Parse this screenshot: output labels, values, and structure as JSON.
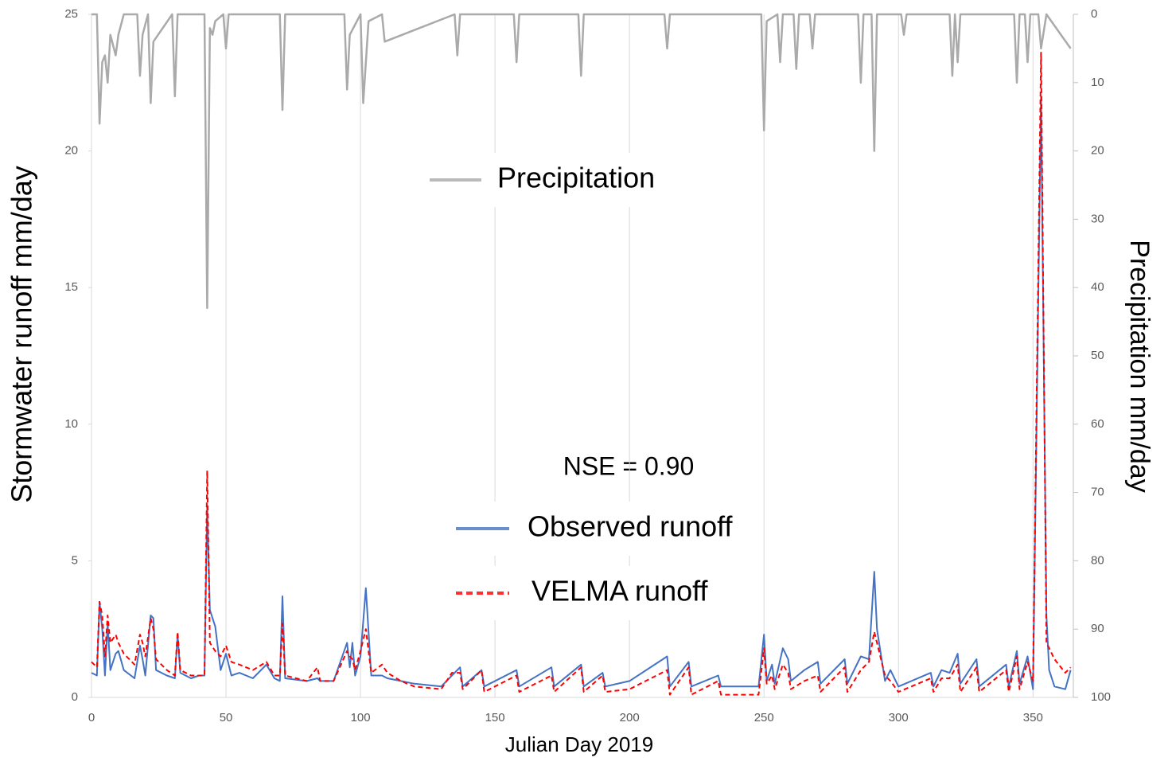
{
  "chart_data": {
    "type": "line",
    "xlabel": "Julian Day 2019",
    "ylabel": "Stormwater runoff mm/day",
    "y2label": "Precipitation mm/day",
    "annotation": "NSE = 0.90",
    "xlim": [
      0,
      365
    ],
    "xticks": [
      0,
      50,
      100,
      150,
      200,
      250,
      300,
      350
    ],
    "ylim": [
      0,
      25
    ],
    "yticks": [
      0,
      5,
      10,
      15,
      20,
      25
    ],
    "y2lim": [
      100,
      0
    ],
    "y2ticks": [
      0,
      10,
      20,
      30,
      40,
      50,
      60,
      70,
      80,
      90,
      100
    ],
    "grid": "x",
    "x": [
      0,
      2,
      3,
      4,
      5,
      6,
      7,
      9,
      10,
      12,
      16,
      18,
      19,
      20,
      22,
      23,
      24,
      28,
      31,
      32,
      33,
      37,
      40,
      42,
      43,
      44,
      46,
      48,
      50,
      52,
      55,
      60,
      65,
      68,
      70,
      71,
      72,
      80,
      84,
      85,
      90,
      95,
      96,
      97,
      98,
      100,
      102,
      104,
      108,
      110,
      115,
      120,
      130,
      134,
      137,
      138,
      145,
      146,
      158,
      159,
      171,
      172,
      182,
      183,
      190,
      191,
      200,
      214,
      215,
      222,
      223,
      233,
      234,
      248,
      250,
      251,
      253,
      254,
      257,
      259,
      260,
      265,
      270,
      271,
      280,
      281,
      286,
      289,
      291,
      292,
      295,
      297,
      300,
      312,
      313,
      316,
      319,
      322,
      323,
      329,
      330,
      340,
      341,
      344,
      345,
      348,
      350,
      353,
      355,
      356,
      358,
      362,
      364
    ],
    "series": [
      {
        "name": "Precipitation",
        "color": "#aaaaaa",
        "axis": "y2",
        "x": [
          0,
          2,
          3,
          4,
          5,
          6,
          7,
          9,
          10,
          12,
          17,
          18,
          19,
          21,
          22,
          23,
          30,
          31,
          32,
          40,
          42,
          43,
          44,
          45,
          46,
          49,
          50,
          51,
          70,
          71,
          72,
          84,
          85,
          94,
          95,
          96,
          100,
          101,
          103,
          108,
          109,
          135,
          136,
          137,
          157,
          158,
          159,
          181,
          182,
          183,
          213,
          214,
          215,
          249,
          250,
          251,
          255,
          256,
          257,
          261,
          262,
          263,
          267,
          268,
          269,
          285,
          286,
          287,
          290,
          291,
          292,
          301,
          302,
          303,
          319,
          320,
          321,
          322,
          323,
          343,
          344,
          345,
          347,
          348,
          349,
          352,
          353,
          355,
          364
        ],
        "values": [
          0,
          0,
          16,
          7,
          6,
          10,
          3,
          6,
          3,
          0,
          0,
          9,
          3,
          0,
          13,
          4,
          0,
          12,
          0,
          0,
          0,
          43,
          2,
          3,
          1,
          0,
          5,
          0,
          0,
          14,
          0,
          0,
          0,
          0,
          11,
          3,
          0,
          13,
          1,
          0,
          4,
          0,
          6,
          0,
          0,
          7,
          0,
          0,
          9,
          0,
          0,
          5,
          0,
          0,
          17,
          1,
          0,
          7,
          0,
          0,
          8,
          0,
          0,
          5,
          0,
          0,
          10,
          0,
          0,
          20,
          0,
          0,
          3,
          0,
          0,
          9,
          0,
          7,
          0,
          0,
          10,
          0,
          0,
          7,
          0,
          0,
          5,
          0,
          5
        ]
      },
      {
        "name": "Observed runoff",
        "color": "#4472c4",
        "values": [
          0.9,
          0.8,
          3.5,
          2.5,
          0.8,
          2.7,
          1.0,
          1.6,
          1.7,
          1.0,
          0.7,
          1.9,
          1.4,
          0.8,
          3.0,
          2.9,
          1.0,
          0.8,
          0.7,
          2.3,
          0.9,
          0.7,
          0.8,
          0.8,
          7.0,
          3.2,
          2.6,
          1.0,
          1.6,
          0.8,
          0.9,
          0.7,
          1.2,
          0.7,
          0.6,
          3.7,
          0.7,
          0.6,
          0.7,
          0.6,
          0.6,
          2.0,
          1.1,
          2.0,
          0.8,
          1.5,
          4.0,
          0.8,
          0.8,
          0.7,
          0.6,
          0.5,
          0.4,
          0.8,
          1.1,
          0.4,
          1.0,
          0.4,
          1.0,
          0.4,
          1.1,
          0.4,
          1.2,
          0.4,
          0.9,
          0.4,
          0.6,
          1.5,
          0.4,
          1.3,
          0.4,
          0.8,
          0.4,
          0.4,
          2.3,
          0.6,
          1.2,
          0.5,
          1.8,
          1.4,
          0.6,
          1.0,
          1.3,
          0.5,
          1.4,
          0.5,
          1.5,
          1.4,
          4.6,
          2.5,
          0.6,
          1.0,
          0.4,
          0.9,
          0.4,
          1.0,
          0.9,
          1.6,
          0.5,
          1.4,
          0.4,
          1.2,
          0.4,
          1.7,
          0.5,
          1.5,
          0.3,
          22.0,
          3.0,
          1.0,
          0.4,
          0.3,
          1.0
        ]
      },
      {
        "name": "VELMA runoff",
        "color": "#ff0000",
        "dash": true,
        "values": [
          1.3,
          1.1,
          3.5,
          3.0,
          1.5,
          3.0,
          2.0,
          2.3,
          2.0,
          1.6,
          1.2,
          2.3,
          2.0,
          1.5,
          2.9,
          2.5,
          1.4,
          1.0,
          0.8,
          2.4,
          1.0,
          0.8,
          0.8,
          0.8,
          8.3,
          2.0,
          1.7,
          1.5,
          1.9,
          1.3,
          1.2,
          1.0,
          1.3,
          0.8,
          0.8,
          2.7,
          0.8,
          0.6,
          1.1,
          0.6,
          0.6,
          1.7,
          1.5,
          1.4,
          1.0,
          1.7,
          2.5,
          0.9,
          1.2,
          0.9,
          0.6,
          0.4,
          0.3,
          0.9,
          0.9,
          0.3,
          1.0,
          0.2,
          0.8,
          0.2,
          0.8,
          0.2,
          1.1,
          0.2,
          0.8,
          0.2,
          0.3,
          1.0,
          0.1,
          1.1,
          0.1,
          0.6,
          0.1,
          0.1,
          1.8,
          0.5,
          0.8,
          0.3,
          1.2,
          0.9,
          0.3,
          0.6,
          0.8,
          0.2,
          1.1,
          0.2,
          1.0,
          1.3,
          2.4,
          2.0,
          0.8,
          0.6,
          0.2,
          0.7,
          0.2,
          0.7,
          0.7,
          1.2,
          0.2,
          1.1,
          0.2,
          1.0,
          0.2,
          1.5,
          0.3,
          1.3,
          0.6,
          23.6,
          2.0,
          1.8,
          1.4,
          0.9,
          1.1
        ]
      }
    ]
  }
}
